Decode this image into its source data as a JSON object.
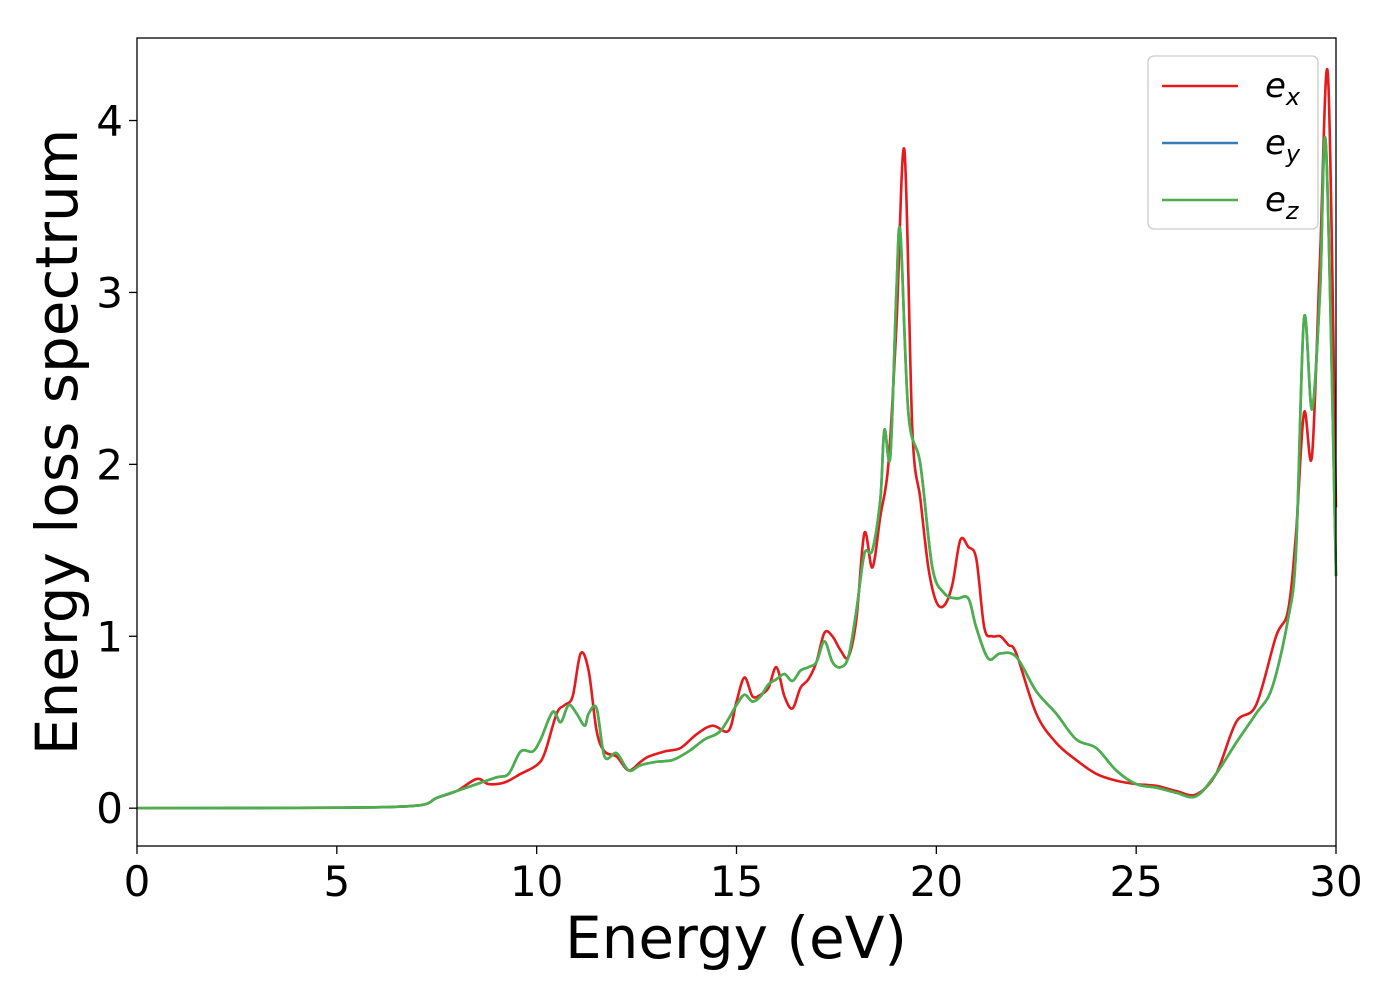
{
  "chart_data": {
    "type": "line",
    "title": "",
    "xlabel": "Energy (eV)",
    "ylabel": "Energy loss spectrum",
    "xlim": [
      0,
      30
    ],
    "ylim": [
      -0.22,
      4.48
    ],
    "xticks": [
      0,
      5,
      10,
      15,
      20,
      25,
      30
    ],
    "yticks": [
      0,
      1,
      2,
      3,
      4
    ],
    "grid": false,
    "legend_position": "top-right",
    "series": [
      {
        "name": "e_x",
        "legend_base": "e",
        "legend_sub": "x",
        "color": "#e41a1c",
        "x": [
          0,
          5,
          7,
          7.5,
          8,
          8.5,
          8.8,
          9.2,
          9.6,
          10,
          10.2,
          10.5,
          10.7,
          10.9,
          11.1,
          11.3,
          11.5,
          11.7,
          12,
          12.3,
          12.6,
          12.8,
          13.2,
          13.6,
          14,
          14.4,
          14.8,
          15,
          15.2,
          15.4,
          15.6,
          15.8,
          16,
          16.2,
          16.4,
          16.6,
          16.8,
          17,
          17.2,
          17.4,
          17.6,
          17.8,
          18,
          18.2,
          18.4,
          18.6,
          18.8,
          19,
          19.2,
          19.4,
          19.6,
          19.8,
          20,
          20.2,
          20.4,
          20.6,
          20.8,
          21,
          21.2,
          21.4,
          21.6,
          21.8,
          22,
          22.5,
          23,
          23.5,
          24,
          24.5,
          25,
          25.5,
          26,
          26.5,
          27,
          27.5,
          28,
          28.5,
          28.8,
          29,
          29.2,
          29.4,
          29.6,
          29.8,
          30
        ],
        "y": [
          0,
          0.003,
          0.015,
          0.06,
          0.1,
          0.17,
          0.14,
          0.15,
          0.2,
          0.25,
          0.32,
          0.55,
          0.6,
          0.65,
          0.9,
          0.8,
          0.45,
          0.33,
          0.3,
          0.22,
          0.27,
          0.3,
          0.33,
          0.35,
          0.43,
          0.48,
          0.45,
          0.62,
          0.76,
          0.65,
          0.66,
          0.7,
          0.82,
          0.65,
          0.58,
          0.7,
          0.75,
          0.85,
          1.02,
          1.0,
          0.92,
          0.88,
          1.1,
          1.6,
          1.4,
          1.7,
          2.0,
          2.8,
          3.83,
          2.2,
          1.8,
          1.4,
          1.2,
          1.18,
          1.3,
          1.56,
          1.52,
          1.45,
          1.05,
          1.0,
          1.0,
          0.95,
          0.9,
          0.55,
          0.38,
          0.28,
          0.2,
          0.16,
          0.14,
          0.13,
          0.1,
          0.08,
          0.2,
          0.5,
          0.6,
          1.0,
          1.15,
          1.6,
          2.3,
          2.05,
          3.2,
          4.26,
          1.75
        ]
      },
      {
        "name": "e_y",
        "legend_base": "e",
        "legend_sub": "y",
        "color": "#377eb8",
        "x": [
          0,
          5,
          7,
          7.5,
          8,
          8.5,
          9,
          9.3,
          9.6,
          9.9,
          10.1,
          10.4,
          10.6,
          10.8,
          11,
          11.2,
          11.3,
          11.5,
          11.7,
          12,
          12.3,
          12.6,
          13,
          13.4,
          13.8,
          14.2,
          14.6,
          15,
          15.2,
          15.4,
          15.6,
          15.8,
          16,
          16.2,
          16.4,
          16.6,
          16.8,
          17,
          17.2,
          17.4,
          17.6,
          17.8,
          18,
          18.2,
          18.4,
          18.6,
          18.7,
          18.85,
          19,
          19.1,
          19.3,
          19.6,
          19.9,
          20.2,
          20.5,
          20.8,
          21,
          21.3,
          21.6,
          22,
          22.5,
          23,
          23.5,
          24,
          24.5,
          25,
          25.5,
          26,
          26.5,
          27,
          27.5,
          28,
          28.4,
          28.8,
          29,
          29.2,
          29.4,
          29.6,
          29.75,
          30
        ],
        "y": [
          0,
          0.003,
          0.015,
          0.06,
          0.1,
          0.14,
          0.18,
          0.2,
          0.33,
          0.33,
          0.4,
          0.56,
          0.5,
          0.6,
          0.55,
          0.48,
          0.55,
          0.58,
          0.3,
          0.32,
          0.22,
          0.25,
          0.27,
          0.28,
          0.33,
          0.4,
          0.45,
          0.6,
          0.66,
          0.62,
          0.65,
          0.72,
          0.75,
          0.78,
          0.74,
          0.8,
          0.82,
          0.85,
          0.97,
          0.85,
          0.82,
          0.88,
          1.15,
          1.48,
          1.5,
          1.8,
          2.2,
          2.05,
          3.0,
          3.35,
          2.3,
          2.0,
          1.4,
          1.25,
          1.22,
          1.22,
          1.05,
          0.87,
          0.9,
          0.88,
          0.68,
          0.55,
          0.4,
          0.35,
          0.22,
          0.14,
          0.12,
          0.09,
          0.07,
          0.2,
          0.38,
          0.55,
          0.7,
          1.1,
          1.5,
          2.85,
          2.32,
          3.0,
          3.85,
          1.35
        ]
      },
      {
        "name": "e_z",
        "legend_base": "e",
        "legend_sub": "z",
        "color": "#4daf4a",
        "x": [
          0,
          5,
          7,
          7.5,
          8,
          8.5,
          9,
          9.3,
          9.6,
          9.9,
          10.1,
          10.4,
          10.6,
          10.8,
          11,
          11.2,
          11.3,
          11.5,
          11.7,
          12,
          12.3,
          12.6,
          13,
          13.4,
          13.8,
          14.2,
          14.6,
          15,
          15.2,
          15.4,
          15.6,
          15.8,
          16,
          16.2,
          16.4,
          16.6,
          16.8,
          17,
          17.2,
          17.4,
          17.6,
          17.8,
          18,
          18.2,
          18.4,
          18.6,
          18.7,
          18.85,
          19,
          19.1,
          19.3,
          19.6,
          19.9,
          20.2,
          20.5,
          20.8,
          21,
          21.3,
          21.6,
          22,
          22.5,
          23,
          23.5,
          24,
          24.5,
          25,
          25.5,
          26,
          26.5,
          27,
          27.5,
          28,
          28.4,
          28.8,
          29,
          29.2,
          29.4,
          29.6,
          29.75,
          30
        ],
        "y": [
          0,
          0.003,
          0.015,
          0.06,
          0.1,
          0.14,
          0.18,
          0.2,
          0.33,
          0.33,
          0.4,
          0.56,
          0.5,
          0.6,
          0.55,
          0.48,
          0.55,
          0.58,
          0.3,
          0.32,
          0.22,
          0.25,
          0.27,
          0.28,
          0.33,
          0.4,
          0.45,
          0.6,
          0.66,
          0.62,
          0.65,
          0.72,
          0.75,
          0.78,
          0.74,
          0.8,
          0.82,
          0.85,
          0.97,
          0.85,
          0.82,
          0.88,
          1.15,
          1.48,
          1.5,
          1.8,
          2.2,
          2.05,
          3.0,
          3.35,
          2.3,
          2.0,
          1.4,
          1.25,
          1.22,
          1.22,
          1.05,
          0.87,
          0.9,
          0.88,
          0.68,
          0.55,
          0.4,
          0.35,
          0.22,
          0.14,
          0.12,
          0.09,
          0.07,
          0.2,
          0.38,
          0.55,
          0.7,
          1.1,
          1.5,
          2.85,
          2.32,
          3.0,
          3.85,
          1.35
        ]
      }
    ]
  }
}
